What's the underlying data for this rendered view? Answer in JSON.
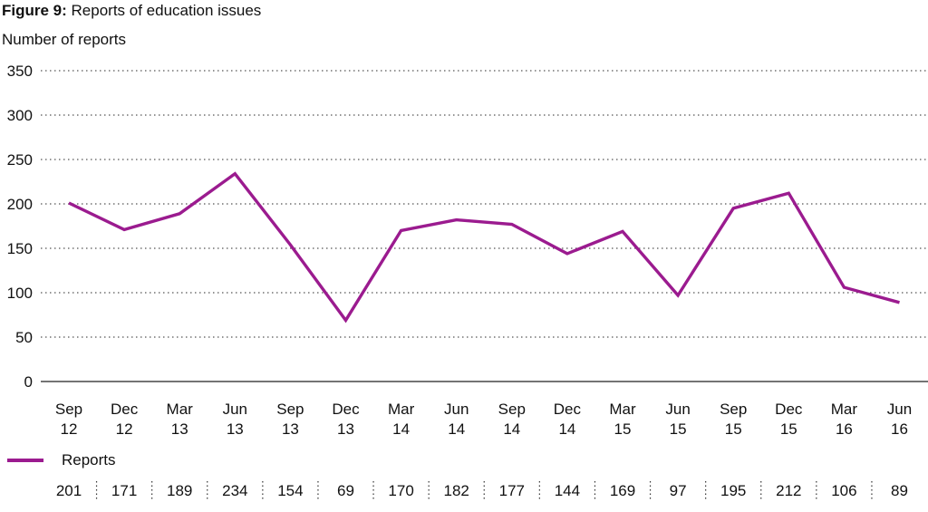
{
  "title_prefix": "Figure 9:",
  "title_text": " Reports of education issues",
  "colors": {
    "series": "#9b1b8f",
    "grid": "#555555",
    "text": "#111111"
  },
  "chart_data": {
    "type": "line",
    "title": "Figure 9: Reports of education issues",
    "ylabel": "Number of reports",
    "xlabel": "",
    "ylim": [
      0,
      350
    ],
    "yticks": [
      0,
      50,
      100,
      150,
      200,
      250,
      300,
      350
    ],
    "grid": "horizontal dotted",
    "categories": [
      [
        "Sep",
        "12"
      ],
      [
        "Dec",
        "12"
      ],
      [
        "Mar",
        "13"
      ],
      [
        "Jun",
        "13"
      ],
      [
        "Sep",
        "13"
      ],
      [
        "Dec",
        "13"
      ],
      [
        "Mar",
        "14"
      ],
      [
        "Jun",
        "14"
      ],
      [
        "Sep",
        "14"
      ],
      [
        "Dec",
        "14"
      ],
      [
        "Mar",
        "15"
      ],
      [
        "Jun",
        "15"
      ],
      [
        "Sep",
        "15"
      ],
      [
        "Dec",
        "15"
      ],
      [
        "Mar",
        "16"
      ],
      [
        "Jun",
        "16"
      ]
    ],
    "series": [
      {
        "name": "Reports",
        "values": [
          201,
          171,
          189,
          234,
          154,
          69,
          170,
          182,
          177,
          144,
          169,
          97,
          195,
          212,
          106,
          89
        ]
      }
    ],
    "legend": "bottom-left, with data table"
  }
}
